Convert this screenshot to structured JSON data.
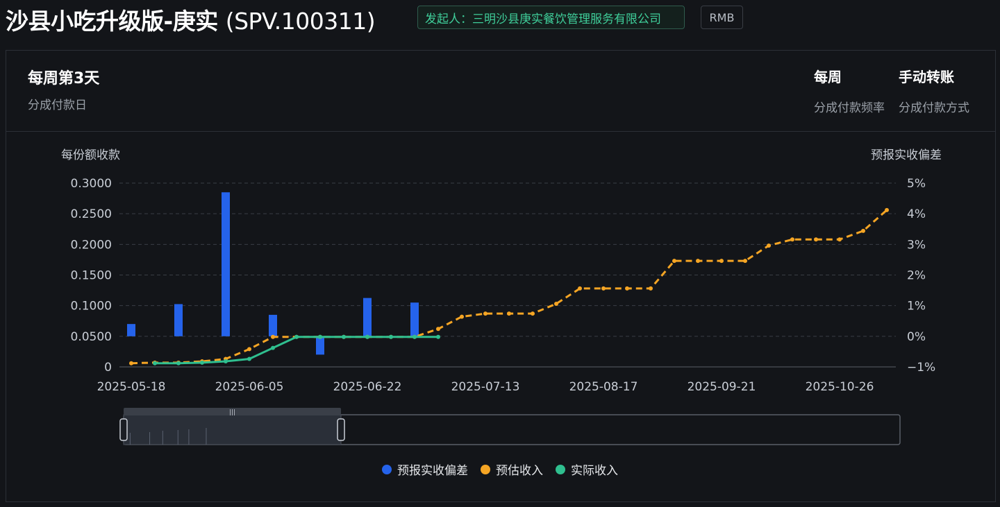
{
  "header": {
    "title": "沙县小吃升级版-庚实",
    "code": "(SPV.100311)",
    "initiator_label": "发起人：",
    "initiator": "三明沙县庚实餐饮管理服务有限公司",
    "currency": "RMB"
  },
  "info": {
    "payday_value": "每周第3天",
    "payday_label": "分成付款日",
    "freq_value": "每周",
    "freq_label": "分成付款频率",
    "method_value": "手动转账",
    "method_label": "分成付款方式"
  },
  "colors": {
    "deviation": "#2563eb",
    "estimated": "#f5a524",
    "actual": "#2fbf8f"
  },
  "chart_data": {
    "type": "bar",
    "y_left_label": "每份额收款",
    "y_right_label": "预报实收偏差",
    "y_left_ticks": [
      "0",
      "0.0500",
      "0.1000",
      "0.1500",
      "0.2000",
      "0.2500",
      "0.3000"
    ],
    "y_left_range": [
      0,
      0.3
    ],
    "y_right_ticks": [
      "−1%",
      "0%",
      "1%",
      "2%",
      "3%",
      "4%",
      "5%"
    ],
    "y_right_range": [
      -1,
      5
    ],
    "x_ticks": [
      "2025-05-18",
      "2025-06-05",
      "2025-06-22",
      "2025-07-13",
      "2025-08-17",
      "2025-09-21",
      "2025-10-26"
    ],
    "grid": true,
    "legend_position": "bottom",
    "series": [
      {
        "name": "预报实收偏差",
        "type": "bar",
        "axis": "right",
        "values": [
          0.4,
          null,
          1.05,
          null,
          4.7,
          null,
          0.7,
          null,
          -0.6,
          null,
          1.25,
          null,
          1.1,
          null
        ]
      },
      {
        "name": "预估收入",
        "type": "line",
        "axis": "left",
        "values": [
          0.006,
          0.007,
          0.007,
          0.009,
          0.013,
          0.029,
          0.049,
          0.049,
          0.049,
          0.049,
          0.049,
          0.049,
          0.049,
          0.062,
          0.082,
          0.087,
          0.087,
          0.087,
          0.103,
          0.128,
          0.128,
          0.128,
          0.128,
          0.173,
          0.173,
          0.173,
          0.173,
          0.198,
          0.208,
          0.208,
          0.208,
          0.222,
          0.256
        ]
      },
      {
        "name": "实际收入",
        "type": "line",
        "axis": "left",
        "values": [
          null,
          0.006,
          0.006,
          0.007,
          0.009,
          0.013,
          0.031,
          0.049,
          0.049,
          0.049,
          0.049,
          0.049,
          0.049,
          0.049
        ]
      }
    ],
    "dataZoom": {
      "start": 0,
      "end": 0.28
    }
  }
}
